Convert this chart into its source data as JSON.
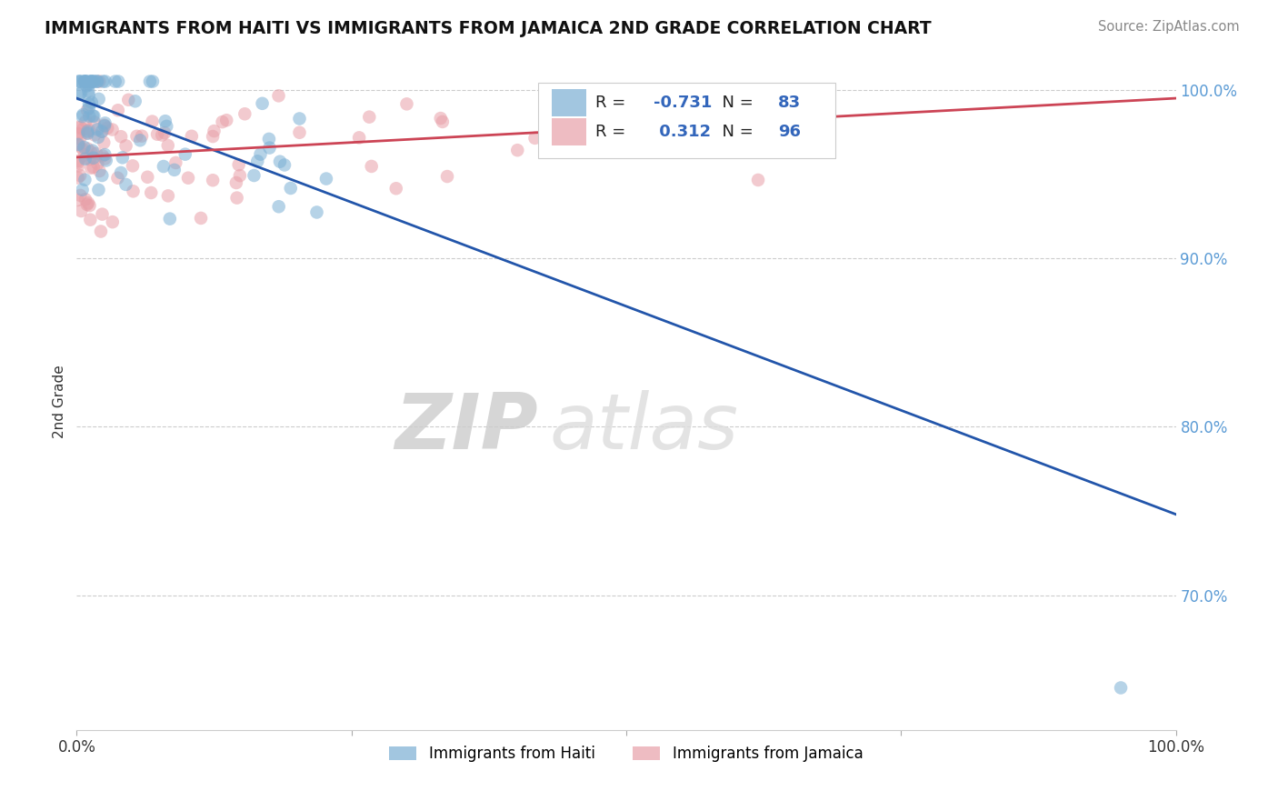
{
  "title": "IMMIGRANTS FROM HAITI VS IMMIGRANTS FROM JAMAICA 2ND GRADE CORRELATION CHART",
  "source": "Source: ZipAtlas.com",
  "ylabel": "2nd Grade",
  "haiti_color": "#7bafd4",
  "jamaica_color": "#e8a0a8",
  "haiti_line_color": "#2255aa",
  "jamaica_line_color": "#cc4455",
  "haiti_R": -0.731,
  "haiti_N": 83,
  "jamaica_R": 0.312,
  "jamaica_N": 96,
  "xlim": [
    0.0,
    1.0
  ],
  "ylim": [
    0.62,
    1.01
  ],
  "yticks": [
    0.7,
    0.8,
    0.9,
    1.0
  ],
  "ytick_labels": [
    "70.0%",
    "80.0%",
    "90.0%",
    "100.0%"
  ],
  "watermark_zip": "ZIP",
  "watermark_atlas": "atlas",
  "background_color": "#ffffff",
  "haiti_line_x0": 0.0,
  "haiti_line_y0": 0.995,
  "haiti_line_x1": 1.0,
  "haiti_line_y1": 0.748,
  "jamaica_line_x0": 0.0,
  "jamaica_line_y0": 0.96,
  "jamaica_line_x1": 1.0,
  "jamaica_line_y1": 0.995
}
